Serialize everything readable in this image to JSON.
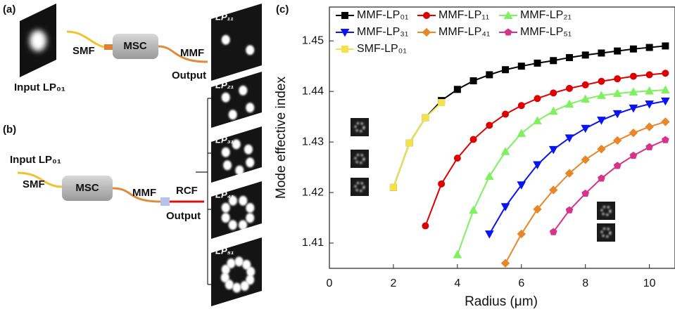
{
  "panels": {
    "a": {
      "label": "(a)",
      "input": "Input LP₀₁",
      "smf": "SMF",
      "msc": "MSC",
      "mmf": "MMF",
      "output": "Output"
    },
    "b": {
      "label": "(b)",
      "input": "Input LP₀₁",
      "smf": "SMF",
      "msc": "MSC",
      "mmf": "MMF",
      "rcf": "RCF",
      "output": "Output"
    },
    "modes": [
      "LP₁₁",
      "LP₂₁",
      "LP₃₁",
      "LP₄₁",
      "LP₅₁"
    ]
  },
  "chart_data": {
    "type": "line",
    "panel_label": "(c)",
    "x_label": "Radius (μm)",
    "y_label": "Mode effective index",
    "xlim": [
      0,
      10.8
    ],
    "ylim": [
      1.405,
      1.4567
    ],
    "xticks": [
      0,
      2,
      4,
      6,
      8,
      10
    ],
    "yticks": [
      1.41,
      1.42,
      1.43,
      1.44,
      1.45
    ],
    "series": [
      {
        "name": "MMF-LP₀₁",
        "color": "#000000",
        "marker": "square",
        "x": [
          2,
          2.5,
          3,
          3.5,
          4,
          4.5,
          5,
          5.5,
          6,
          6.5,
          7,
          7.5,
          8,
          8.5,
          9,
          9.5,
          10,
          10.5
        ],
        "values": [
          1.421,
          1.4298,
          1.4348,
          1.4382,
          1.4404,
          1.4421,
          1.4433,
          1.4443,
          1.445,
          1.4456,
          1.4461,
          1.4467,
          1.4472,
          1.4476,
          1.448,
          1.4484,
          1.4487,
          1.449
        ]
      },
      {
        "name": "MMF-LP₁₁",
        "color": "#dd0000",
        "marker": "circle",
        "x": [
          3,
          3.5,
          4,
          4.5,
          5,
          5.5,
          6,
          6.5,
          7,
          7.5,
          8,
          8.5,
          9,
          9.5,
          10,
          10.5
        ],
        "values": [
          1.4134,
          1.4217,
          1.4268,
          1.4305,
          1.4333,
          1.4355,
          1.4372,
          1.4386,
          1.4397,
          1.4406,
          1.4413,
          1.442,
          1.4425,
          1.443,
          1.4433,
          1.4436
        ]
      },
      {
        "name": "MMF-LP₂₁",
        "color": "#7ff060",
        "marker": "triangle-up",
        "x": [
          4,
          4.5,
          5,
          5.5,
          6,
          6.5,
          7,
          7.5,
          8,
          8.5,
          9,
          9.5,
          10,
          10.5
        ],
        "values": [
          1.4077,
          1.4165,
          1.4232,
          1.4281,
          1.4317,
          1.4342,
          1.4361,
          1.4375,
          1.4385,
          1.4392,
          1.4396,
          1.4399,
          1.4401,
          1.4403
        ]
      },
      {
        "name": "MMF-LP₃₁",
        "color": "#0a14f0",
        "marker": "triangle-down",
        "x": [
          5,
          5.5,
          6,
          6.5,
          7,
          7.5,
          8,
          8.5,
          9,
          9.5,
          10,
          10.5
        ],
        "values": [
          1.4118,
          1.4172,
          1.4215,
          1.4255,
          1.4285,
          1.4308,
          1.4327,
          1.4343,
          1.4356,
          1.4367,
          1.4375,
          1.4381
        ]
      },
      {
        "name": "MMF-LP₄₁",
        "color": "#e8862a",
        "marker": "diamond",
        "x": [
          5.5,
          6,
          6.5,
          7,
          7.5,
          8,
          8.5,
          9,
          9.5,
          10,
          10.5
        ],
        "values": [
          1.406,
          1.4118,
          1.4167,
          1.4205,
          1.4238,
          1.4265,
          1.4286,
          1.4303,
          1.4318,
          1.433,
          1.434
        ]
      },
      {
        "name": "MMF-LP₅₁",
        "color": "#d6338a",
        "marker": "pentagon",
        "x": [
          7,
          7.5,
          8,
          8.5,
          9,
          9.5,
          10,
          10.5
        ],
        "values": [
          1.4122,
          1.4165,
          1.4198,
          1.4228,
          1.4253,
          1.4273,
          1.429,
          1.4304
        ]
      },
      {
        "name": "SMF-LP₀₁",
        "color": "#f3e24a",
        "marker": "square",
        "x": [
          2,
          2.5,
          3,
          3.5
        ],
        "values": [
          1.421,
          1.4298,
          1.4348,
          1.4378
        ]
      }
    ]
  }
}
